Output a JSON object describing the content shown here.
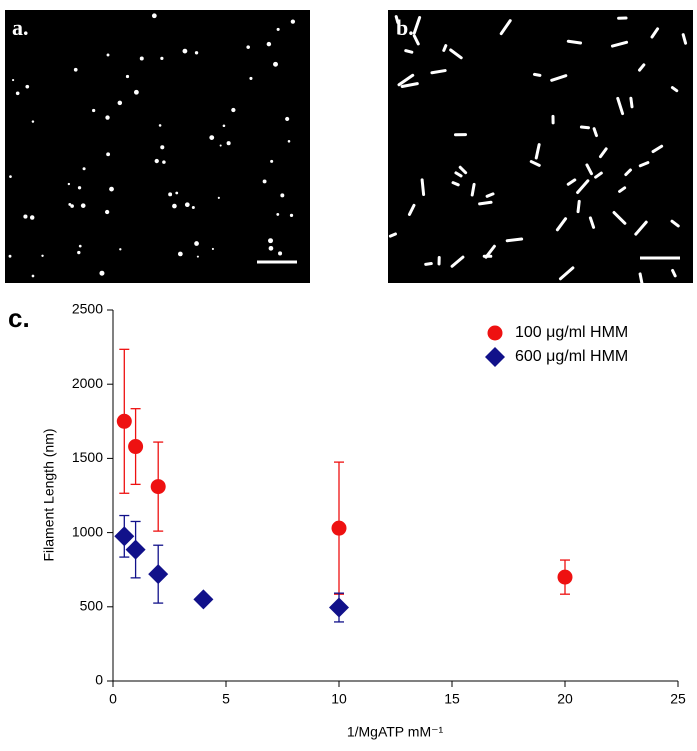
{
  "panel_labels": [
    "a.",
    "b.",
    "c."
  ],
  "chart_data": {
    "type": "scatter",
    "xlabel": "1/MgATP mM⁻¹",
    "ylabel": "Filament Length (nm)",
    "xlim": [
      0,
      25
    ],
    "xticks": [
      0,
      5,
      10,
      15,
      20,
      25
    ],
    "ylim": [
      0,
      2500
    ],
    "yticks": [
      0,
      500,
      1000,
      1500,
      2000,
      2500
    ],
    "legend": "upper right",
    "series": [
      {
        "name": "100 μg/ml HMM",
        "color": "#ee1111",
        "marker": "circle",
        "x": [
          0.5,
          1,
          2,
          10,
          20
        ],
        "values": [
          1750,
          1580,
          1310,
          1030,
          700
        ],
        "errors": [
          485,
          255,
          300,
          445,
          115
        ]
      },
      {
        "name": "600 μg/ml HMM",
        "color": "#11118a",
        "marker": "diamond",
        "x": [
          0.5,
          1,
          2,
          4,
          10
        ],
        "values": [
          975,
          885,
          720,
          550,
          495
        ],
        "errors": [
          140,
          190,
          195,
          null,
          97
        ]
      }
    ]
  }
}
